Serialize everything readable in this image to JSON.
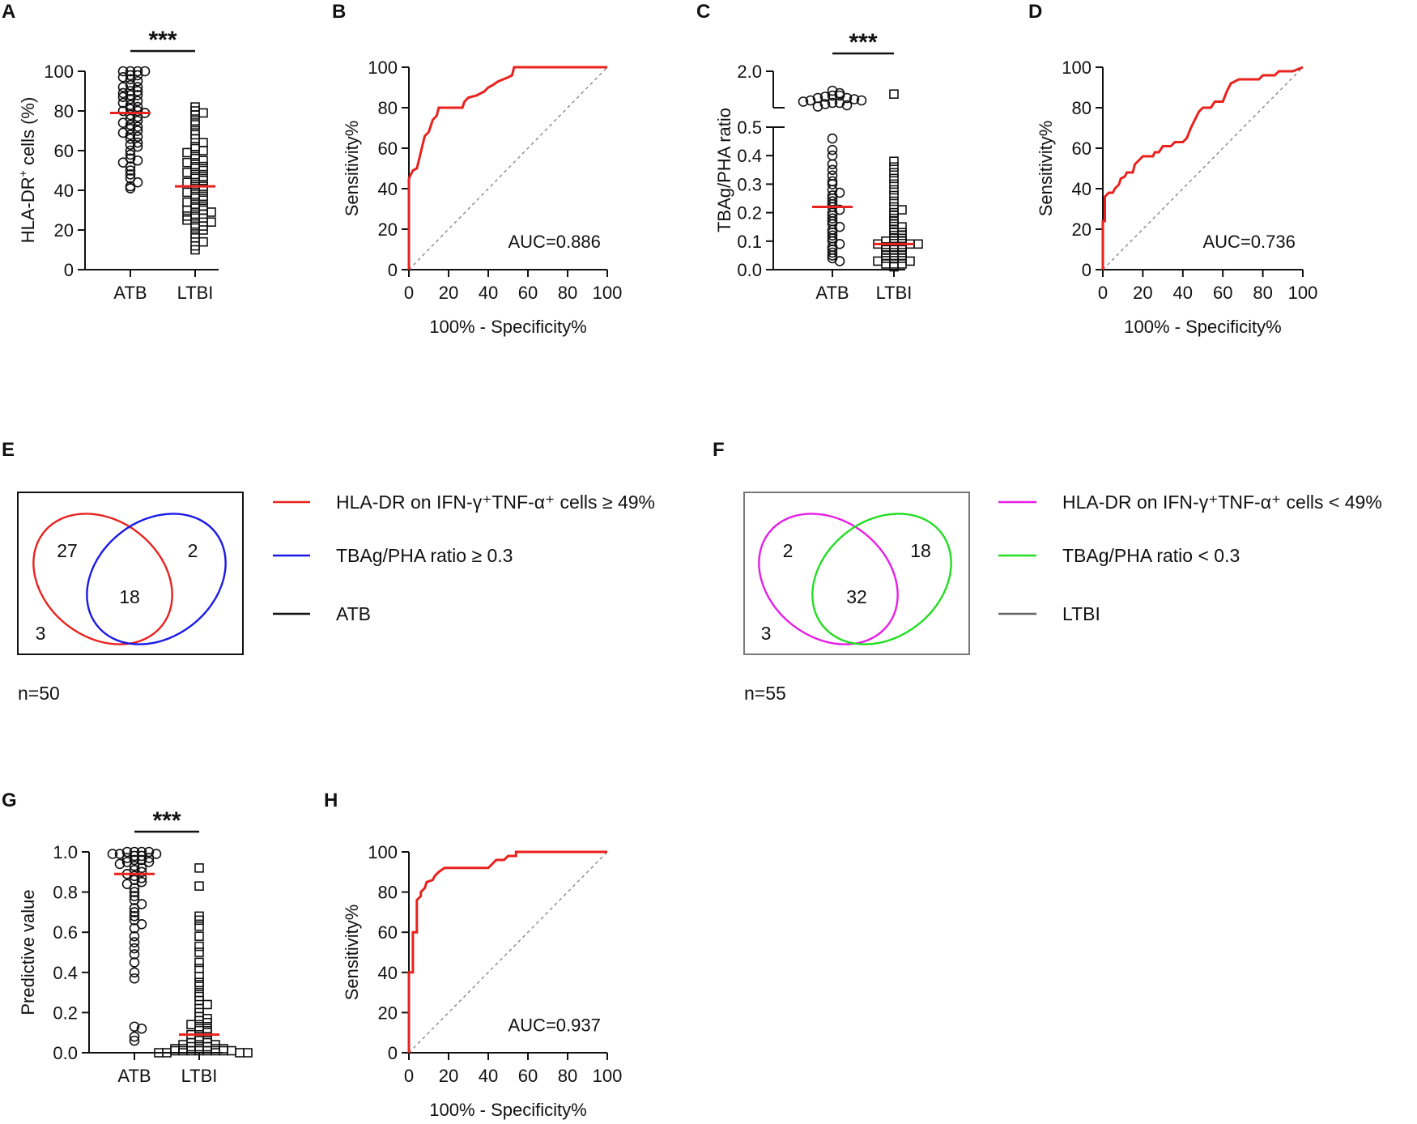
{
  "panels": [
    {
      "letter": "A",
      "type": "scatter",
      "ylabel": "HLA-DR",
      "ylabel_sup": "+",
      "ylabel_rest": " cells (%)",
      "ylim": [
        0,
        100
      ],
      "yticks": [
        "0",
        "20",
        "40",
        "60",
        "80",
        "100"
      ],
      "categories": [
        "ATB",
        "LTBI"
      ],
      "significance": "***",
      "medians": [
        79,
        42
      ],
      "points": {
        "ATB": [
          100,
          100,
          100,
          100,
          98,
          98,
          97,
          96,
          95,
          93,
          92,
          92,
          90,
          90,
          89,
          88,
          88,
          87,
          86,
          85,
          84,
          83,
          82,
          81,
          80,
          80,
          79,
          78,
          77,
          76,
          75,
          74,
          73,
          72,
          71,
          70,
          69,
          68,
          67,
          66,
          64,
          63,
          62,
          60,
          58,
          56,
          55,
          54,
          52,
          50,
          48,
          46,
          44,
          42,
          41
        ],
        "LTBI": [
          82,
          80,
          79,
          78,
          75,
          73,
          70,
          68,
          66,
          64,
          62,
          61,
          60,
          59,
          58,
          56,
          55,
          54,
          53,
          52,
          51,
          50,
          49,
          48,
          47,
          46,
          45,
          44,
          43,
          42,
          41,
          40,
          39,
          38,
          37,
          36,
          35,
          34,
          33,
          32,
          31,
          30,
          30,
          29,
          28,
          28,
          27,
          26,
          26,
          25,
          24,
          23,
          22,
          21,
          20,
          18,
          16,
          14,
          12,
          10
        ]
      }
    },
    {
      "letter": "B",
      "type": "roc",
      "auc_label": "AUC=0.886",
      "xlabel": "100% - Specificity%",
      "ylabel": "Sensitivity%",
      "ticks": [
        "0",
        "20",
        "40",
        "60",
        "80",
        "100"
      ],
      "roc": [
        [
          0,
          0
        ],
        [
          0,
          45
        ],
        [
          1,
          47
        ],
        [
          2,
          49
        ],
        [
          4,
          50
        ],
        [
          5,
          54
        ],
        [
          6,
          58
        ],
        [
          7,
          62
        ],
        [
          8,
          66
        ],
        [
          10,
          68
        ],
        [
          11,
          71
        ],
        [
          12,
          74
        ],
        [
          14,
          76
        ],
        [
          15,
          80
        ],
        [
          22,
          80
        ],
        [
          27,
          80
        ],
        [
          28,
          83
        ],
        [
          30,
          85
        ],
        [
          34,
          86
        ],
        [
          38,
          88
        ],
        [
          40,
          90
        ],
        [
          42,
          91
        ],
        [
          45,
          93
        ],
        [
          50,
          95
        ],
        [
          52,
          96
        ],
        [
          53,
          100
        ],
        [
          100,
          100
        ]
      ]
    },
    {
      "letter": "C",
      "type": "scatter_broken",
      "ylabel": "TBAg/PHA ratio",
      "yticks": [
        "0.0",
        "0.1",
        "0.2",
        "0.3",
        "0.4",
        "0.5"
      ],
      "ytick_top": "2.0",
      "categories": [
        "ATB",
        "LTBI"
      ],
      "significance": "***",
      "medians": [
        0.22,
        0.09
      ],
      "points": {
        "ATB": [
          0.46,
          0.42,
          0.4,
          0.37,
          0.35,
          0.33,
          0.31,
          0.3,
          0.28,
          0.27,
          0.26,
          0.25,
          0.24,
          0.23,
          0.22,
          0.21,
          0.2,
          0.19,
          0.18,
          0.17,
          0.16,
          0.15,
          0.14,
          0.13,
          0.12,
          0.11,
          0.1,
          0.09,
          0.08,
          0.07,
          0.06,
          0.05,
          0.04,
          0.03
        ],
        "ATB_top": [
          1.2,
          1.1,
          1.0,
          1.0,
          0.95,
          0.9,
          0.9,
          0.85,
          0.8,
          0.8,
          0.75,
          0.7,
          0.7,
          0.65,
          0.6,
          0.55
        ],
        "LTBI": [
          0.38,
          0.36,
          0.34,
          0.32,
          0.3,
          0.28,
          0.26,
          0.24,
          0.22,
          0.21,
          0.2,
          0.19,
          0.18,
          0.17,
          0.16,
          0.15,
          0.14,
          0.13,
          0.13,
          0.12,
          0.12,
          0.11,
          0.11,
          0.1,
          0.1,
          0.1,
          0.09,
          0.09,
          0.09,
          0.08,
          0.08,
          0.08,
          0.07,
          0.07,
          0.07,
          0.06,
          0.06,
          0.06,
          0.05,
          0.05,
          0.05,
          0.04,
          0.04,
          0.04,
          0.03,
          0.03,
          0.02,
          0.02,
          0.02,
          0.01
        ],
        "LTBI_top": [
          0.7
        ]
      }
    },
    {
      "letter": "D",
      "type": "roc",
      "auc_label": "AUC=0.736",
      "xlabel": "100% - Specificity%",
      "ylabel": "Sensitivity%",
      "ticks": [
        "0",
        "20",
        "40",
        "60",
        "80",
        "100"
      ],
      "roc": [
        [
          0,
          0
        ],
        [
          0,
          24
        ],
        [
          1,
          24
        ],
        [
          1,
          36
        ],
        [
          3,
          38
        ],
        [
          5,
          38
        ],
        [
          6,
          40
        ],
        [
          8,
          42
        ],
        [
          9,
          45
        ],
        [
          11,
          46
        ],
        [
          12,
          48
        ],
        [
          15,
          48
        ],
        [
          16,
          52
        ],
        [
          18,
          54
        ],
        [
          20,
          56
        ],
        [
          25,
          56
        ],
        [
          26,
          58
        ],
        [
          28,
          58
        ],
        [
          30,
          61
        ],
        [
          34,
          61
        ],
        [
          36,
          63
        ],
        [
          40,
          63
        ],
        [
          42,
          65
        ],
        [
          44,
          70
        ],
        [
          46,
          74
        ],
        [
          48,
          78
        ],
        [
          50,
          80
        ],
        [
          54,
          80
        ],
        [
          56,
          83
        ],
        [
          60,
          83
        ],
        [
          62,
          88
        ],
        [
          64,
          92
        ],
        [
          68,
          94
        ],
        [
          78,
          94
        ],
        [
          80,
          96
        ],
        [
          86,
          96
        ],
        [
          88,
          98
        ],
        [
          95,
          98
        ],
        [
          100,
          100
        ]
      ]
    },
    {
      "letter": "G",
      "type": "scatter",
      "ylabel": "Predictive value",
      "ylim": [
        0,
        1
      ],
      "yticks": [
        "0.0",
        "0.2",
        "0.4",
        "0.6",
        "0.8",
        "1.0"
      ],
      "categories": [
        "ATB",
        "LTBI"
      ],
      "significance": "***",
      "medians": [
        0.89,
        0.09
      ],
      "points": {
        "ATB": [
          1.0,
          1.0,
          1.0,
          1.0,
          0.99,
          0.99,
          0.99,
          0.98,
          0.98,
          0.97,
          0.97,
          0.96,
          0.96,
          0.95,
          0.95,
          0.94,
          0.93,
          0.92,
          0.91,
          0.9,
          0.89,
          0.88,
          0.87,
          0.86,
          0.85,
          0.84,
          0.82,
          0.8,
          0.78,
          0.76,
          0.74,
          0.72,
          0.7,
          0.68,
          0.66,
          0.64,
          0.62,
          0.58,
          0.55,
          0.52,
          0.49,
          0.45,
          0.4,
          0.37,
          0.13,
          0.12,
          0.08,
          0.06
        ],
        "LTBI": [
          0.92,
          0.83,
          0.68,
          0.66,
          0.63,
          0.58,
          0.53,
          0.5,
          0.45,
          0.42,
          0.38,
          0.35,
          0.33,
          0.3,
          0.28,
          0.26,
          0.24,
          0.22,
          0.2,
          0.18,
          0.17,
          0.16,
          0.15,
          0.14,
          0.13,
          0.12,
          0.11,
          0.1,
          0.09,
          0.08,
          0.07,
          0.06,
          0.05,
          0.05,
          0.04,
          0.04,
          0.03,
          0.03,
          0.03,
          0.02,
          0.02,
          0.02,
          0.02,
          0.01,
          0.01,
          0.01,
          0.01,
          0.01,
          0.01,
          0.01,
          0.01,
          0.0,
          0.0,
          0.0,
          0.0
        ]
      }
    },
    {
      "letter": "H",
      "type": "roc",
      "auc_label": "AUC=0.937",
      "xlabel": "100% - Specificity%",
      "ylabel": "Sensitivity%",
      "ticks": [
        "0",
        "20",
        "40",
        "60",
        "80",
        "100"
      ],
      "roc": [
        [
          0,
          0
        ],
        [
          0,
          40
        ],
        [
          2,
          40
        ],
        [
          2,
          60
        ],
        [
          4,
          60
        ],
        [
          4,
          76
        ],
        [
          6,
          78
        ],
        [
          6,
          80
        ],
        [
          8,
          82
        ],
        [
          9,
          85
        ],
        [
          12,
          86
        ],
        [
          13,
          88
        ],
        [
          15,
          90
        ],
        [
          18,
          92
        ],
        [
          40,
          92
        ],
        [
          42,
          94
        ],
        [
          44,
          96
        ],
        [
          48,
          96
        ],
        [
          50,
          98
        ],
        [
          54,
          98
        ],
        [
          54,
          100
        ],
        [
          100,
          100
        ]
      ]
    }
  ],
  "venn_e": {
    "letter": "E",
    "counts": {
      "left": "27",
      "right": "2",
      "overlap": "18",
      "outside": "3"
    },
    "n_label": "n=50",
    "legend": [
      {
        "label": "HLA-DR on IFN-γ⁺TNF-α⁺ cells ≥ 49%",
        "color": "#e8221e"
      },
      {
        "label": "TBAg/PHA ratio ≥ 0.3",
        "color": "#1a1ae6"
      },
      {
        "label": "ATB",
        "color": "#111111"
      }
    ]
  },
  "venn_f": {
    "letter": "F",
    "counts": {
      "left": "2",
      "right": "18",
      "overlap": "32",
      "outside": "3"
    },
    "n_label": "n=55",
    "legend": [
      {
        "label": "HLA-DR on IFN-γ⁺TNF-α⁺ cells < 49%",
        "color": "#e61ee6"
      },
      {
        "label": "TBAg/PHA ratio < 0.3",
        "color": "#22dd22"
      },
      {
        "label": "LTBI",
        "color": "#666666"
      }
    ]
  },
  "colors": {
    "accent": "#e8221e",
    "axis": "#111111",
    "diag": "#888888"
  }
}
